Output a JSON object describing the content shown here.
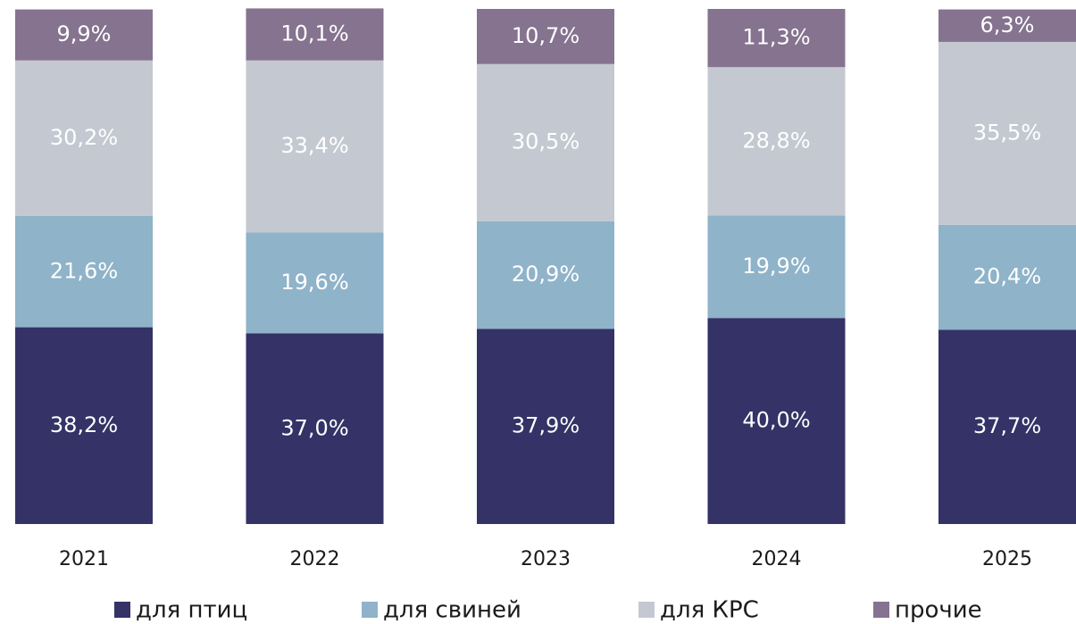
{
  "chart_data": {
    "type": "stacked_bar",
    "categories": [
      "2021",
      "2022",
      "2023",
      "2024",
      "2025"
    ],
    "ylim": [
      0,
      100
    ],
    "series": [
      {
        "name": "для птиц",
        "color": "#343266",
        "values": [
          38.2,
          37.0,
          37.9,
          40.0,
          37.7
        ],
        "value_labels": [
          "38,2%",
          "37,0%",
          "37,9%",
          "40,0%",
          "37,7%"
        ]
      },
      {
        "name": "для свиней",
        "color": "#8fb3c9",
        "values": [
          21.6,
          19.6,
          20.9,
          19.9,
          20.4
        ],
        "value_labels": [
          "21,6%",
          "19,6%",
          "20,9%",
          "19,9%",
          "20,4%"
        ]
      },
      {
        "name": "для КРС",
        "color": "#c4c8d1",
        "values": [
          30.2,
          33.4,
          30.5,
          28.8,
          35.5
        ],
        "value_labels": [
          "30,2%",
          "33,4%",
          "30,5%",
          "28,8%",
          "35,5%"
        ]
      },
      {
        "name": "прочие",
        "color": "#85738f",
        "values": [
          9.9,
          10.1,
          10.7,
          11.3,
          6.3
        ],
        "value_labels": [
          "9,9%",
          "10,1%",
          "10,7%",
          "11,3%",
          "6,3%"
        ]
      }
    ]
  }
}
